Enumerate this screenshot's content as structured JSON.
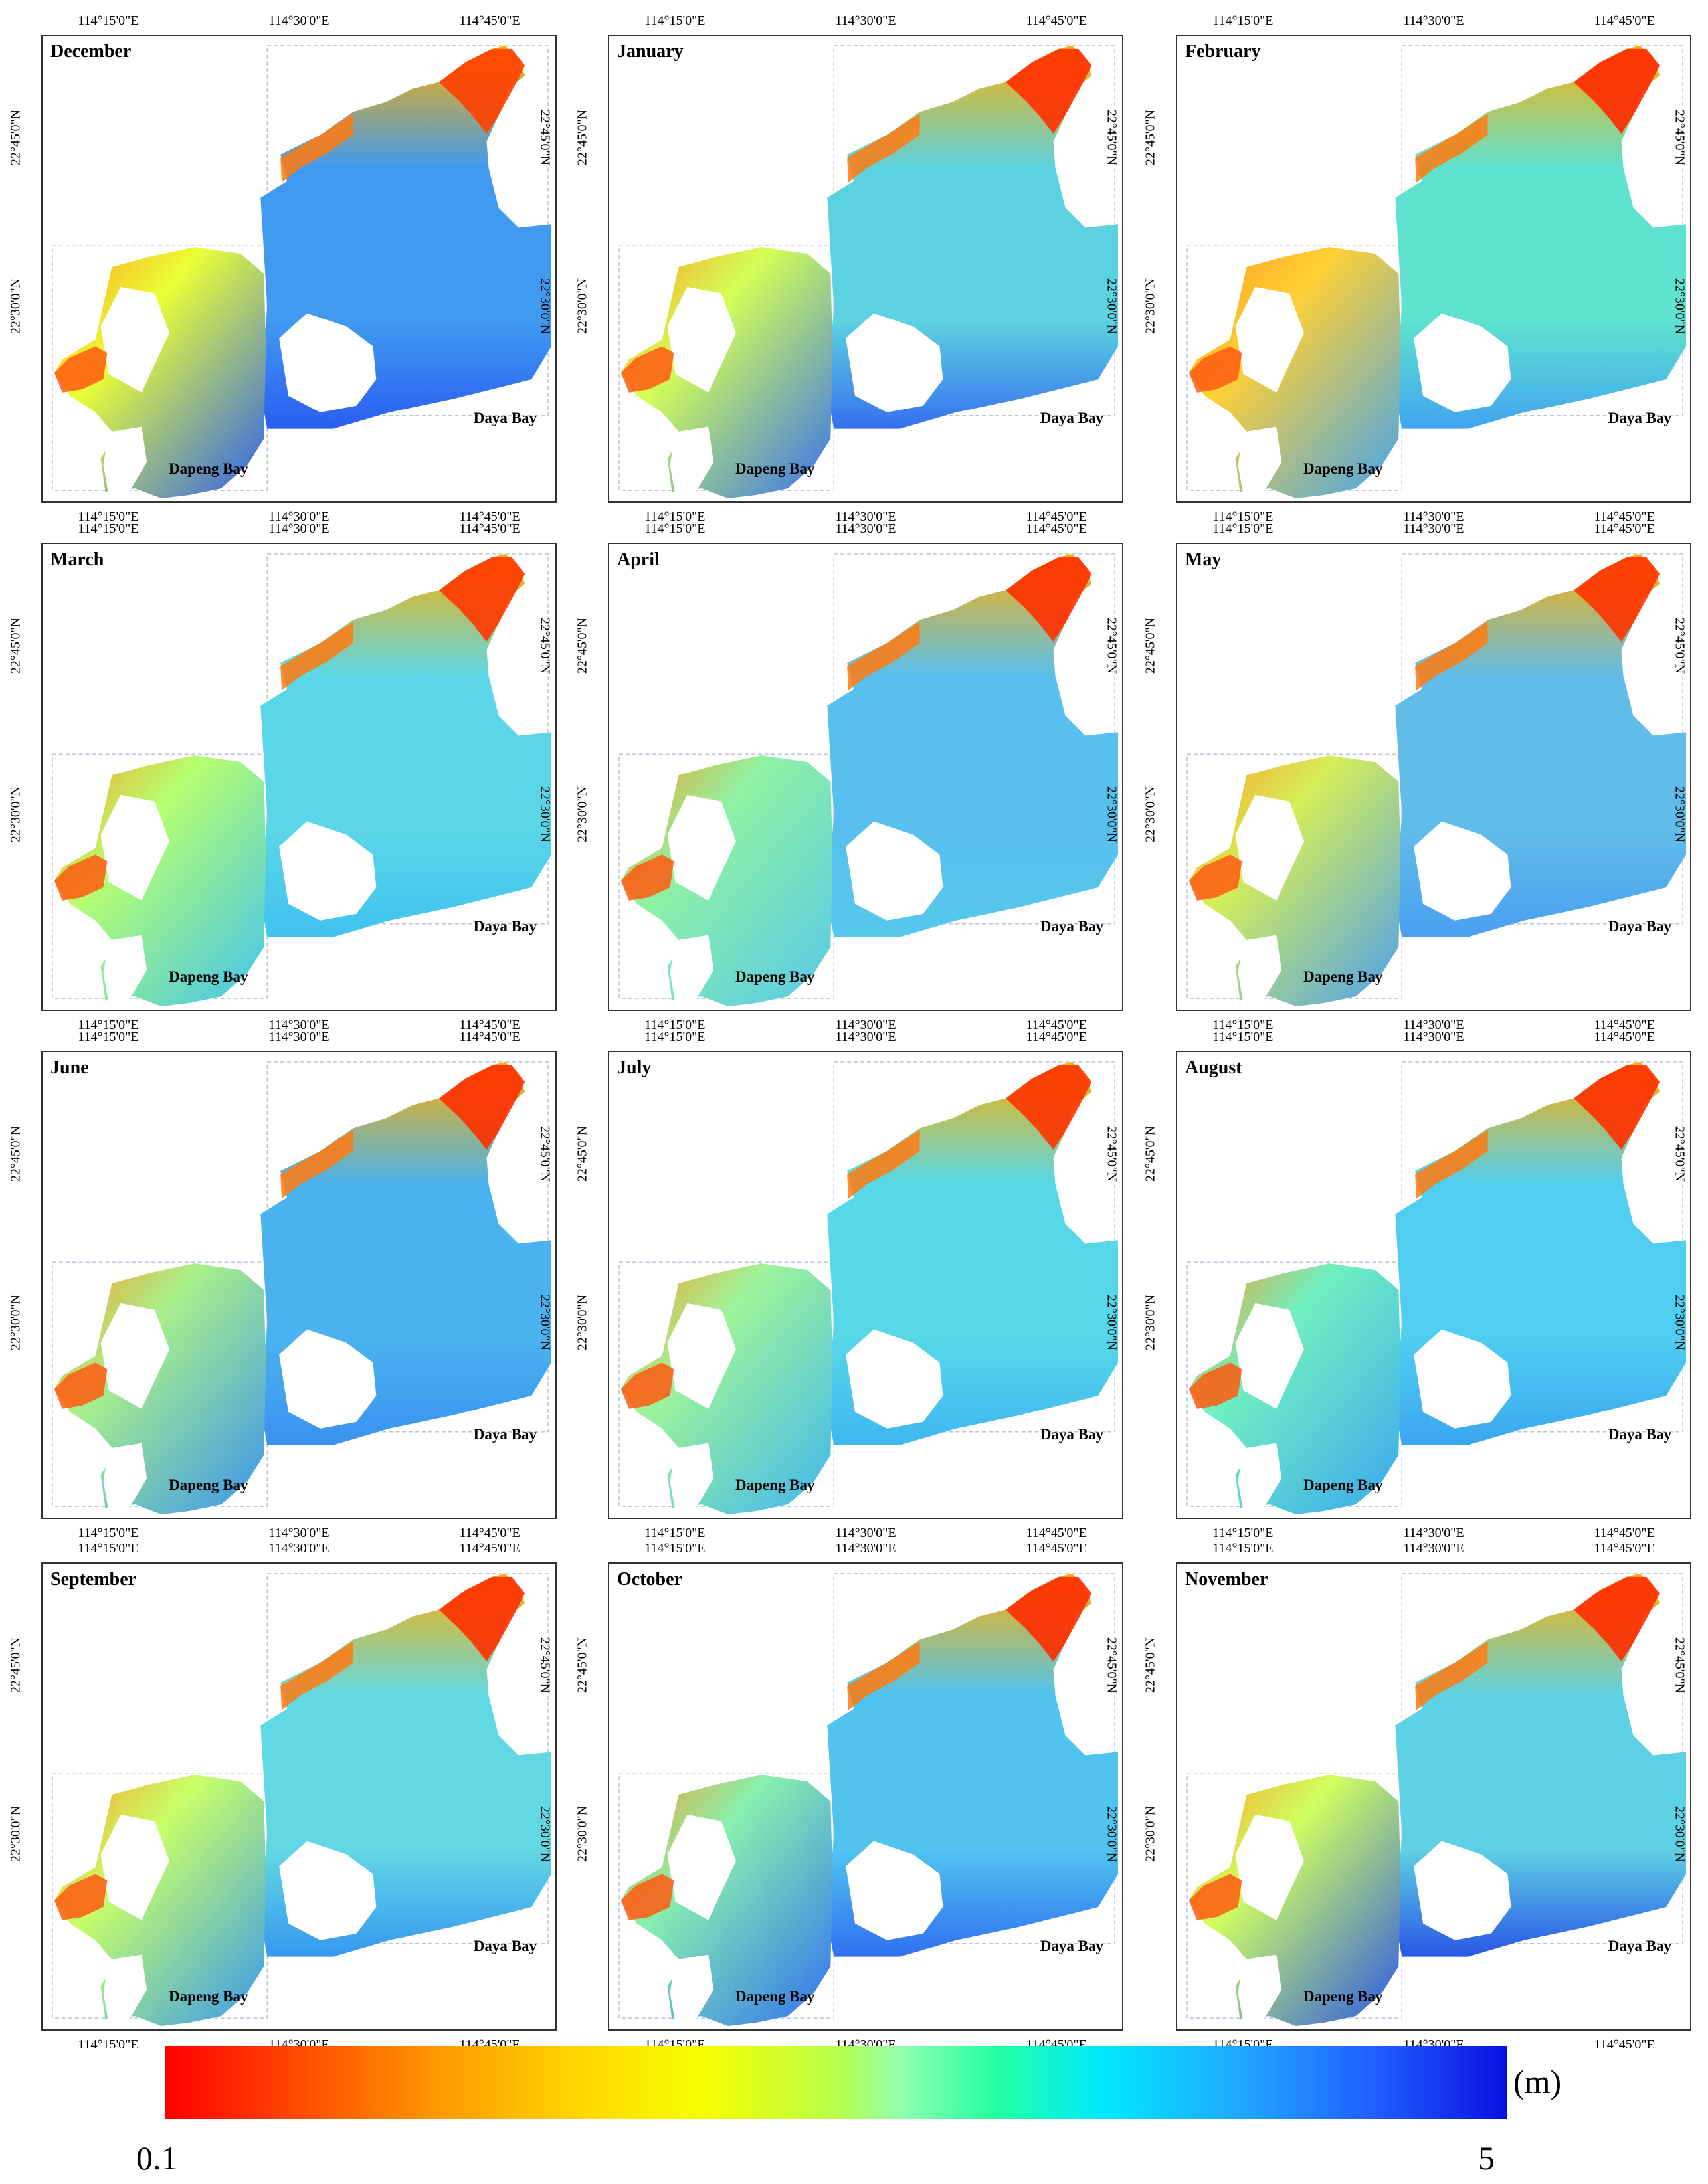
{
  "figure": {
    "months": [
      "December",
      "January",
      "February",
      "March",
      "April",
      "May",
      "June",
      "July",
      "August",
      "September",
      "October",
      "November"
    ],
    "lon_ticks": [
      "114°15'0\"E",
      "114°30'0\"E",
      "114°45'0\"E"
    ],
    "lat_ticks": [
      "22°45'0\"N",
      "22°30'0\"N"
    ],
    "place_labels": {
      "daya": "Daya Bay",
      "dapeng": "Dapeng Bay"
    }
  },
  "legend": {
    "unit": "(m)",
    "min": "0.1",
    "max": "5",
    "colors": [
      "#ff0000",
      "#ff9600",
      "#f8ff00",
      "#8fffb0",
      "#00e8ff",
      "#2060ff",
      "#0a10e0"
    ]
  },
  "panels": [
    {
      "month": "December",
      "west": "#eaff35",
      "east": "#3f9af0",
      "south": "#2a5ef0",
      "shore": "#ff4000"
    },
    {
      "month": "January",
      "west": "#d4ff55",
      "east": "#5cd2e0",
      "south": "#3570f0",
      "shore": "#ff3000"
    },
    {
      "month": "February",
      "west": "#ffd035",
      "east": "#5fe2d0",
      "south": "#40a4f0",
      "shore": "#ff2a00"
    },
    {
      "month": "March",
      "west": "#b6ff70",
      "east": "#5ad6e8",
      "south": "#40c2f0",
      "shore": "#ff3800"
    },
    {
      "month": "April",
      "west": "#8ff2a2",
      "east": "#58c0ef",
      "south": "#56c8ea",
      "shore": "#ff3000"
    },
    {
      "month": "May",
      "west": "#d6ee58",
      "east": "#62bce8",
      "south": "#4a9ff0",
      "shore": "#ff3400"
    },
    {
      "month": "June",
      "west": "#a8f08a",
      "east": "#4ab2ef",
      "south": "#3a92f0",
      "shore": "#ff3000"
    },
    {
      "month": "July",
      "west": "#9ef49a",
      "east": "#56d8e8",
      "south": "#3fb6f0",
      "shore": "#ff3400"
    },
    {
      "month": "August",
      "west": "#70f0c0",
      "east": "#50cef0",
      "south": "#3aa6f0",
      "shore": "#ff3000"
    },
    {
      "month": "September",
      "west": "#c8ff68",
      "east": "#62d8e4",
      "south": "#3698ef",
      "shore": "#ff3000"
    },
    {
      "month": "October",
      "west": "#88f0ae",
      "east": "#50c4ef",
      "south": "#3070f0",
      "shore": "#ff2c00"
    },
    {
      "month": "November",
      "west": "#d0ff60",
      "east": "#5ed2e4",
      "south": "#2a56e6",
      "shore": "#ff2c00"
    }
  ]
}
